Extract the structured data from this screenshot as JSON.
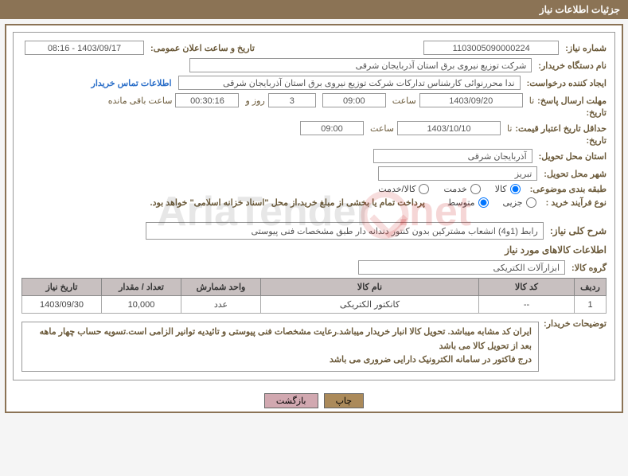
{
  "header": {
    "title": "جزئیات اطلاعات نیاز"
  },
  "form": {
    "need_number_label": "شماره نیاز:",
    "need_number": "1103005090000224",
    "announce_label": "تاریخ و ساعت اعلان عمومی:",
    "announce_value": "1403/09/17 - 08:16",
    "buyer_label": "نام دستگاه خریدار:",
    "buyer_value": "شرکت توزیع نیروی برق استان آذربایجان شرقی",
    "creator_label": "ایجاد کننده درخواست:",
    "creator_value": "ندا محررنوائی کارشناس تدارکات شرکت توزیع نیروی برق استان آذربایجان شرقی",
    "contact_link": "اطلاعات تماس خریدار",
    "deadline_send_label": "مهلت ارسال پاسخ:",
    "ta_label": "تا",
    "date_label": "تاریخ:",
    "deadline_date": "1403/09/20",
    "hour_label": "ساعت",
    "deadline_hour": "09:00",
    "days": "3",
    "day_and": "روز و",
    "countdown": "00:30:16",
    "remaining_label": "ساعت باقی مانده",
    "validity_label": "حداقل تاریخ اعتبار قیمت:",
    "validity_date": "1403/10/10",
    "validity_hour": "09:00",
    "province_label": "استان محل تحویل:",
    "province_value": "آذربایجان شرقی",
    "city_label": "شهر محل تحویل:",
    "city_value": "تبریز",
    "category_label": "طبقه بندی موضوعی:",
    "cat_goods": "کالا",
    "cat_service": "خدمت",
    "cat_goods_service": "کالا/خدمت",
    "process_label": "نوع فرآیند خرید :",
    "proc_partial": "جزیی",
    "proc_medium": "متوسط",
    "payment_note": "پرداخت تمام یا بخشی از مبلغ خرید،از محل \"اسناد خزانه اسلامی\" خواهد بود.",
    "overall_label": "شرح کلی نیاز:",
    "overall_value": "رابط (1و4) انشعاب مشترکین بدون کنتور دندانه دار طبق مشخصات فنی پیوستی",
    "goods_info_title": "اطلاعات کالاهای مورد نیاز",
    "group_label": "گروه کالا:",
    "group_value": "ابزارآلات الکتریکی"
  },
  "table": {
    "columns": [
      "ردیف",
      "کد کالا",
      "نام کالا",
      "واحد شمارش",
      "تعداد / مقدار",
      "تاریخ نیاز"
    ],
    "col_widths": [
      "40px",
      "120px",
      "auto",
      "100px",
      "100px",
      "100px"
    ],
    "header_bg": "#c8c0c0",
    "rows": [
      [
        "1",
        "--",
        "کانکتور الکتریکی",
        "عدد",
        "10,000",
        "1403/09/30"
      ]
    ]
  },
  "buyer_notes": {
    "label": "توضیحات خریدار:",
    "text": "ایران کد مشابه میباشد. تحویل کالا انبار خریدار میباشد.رعایت مشخصات فنی پیوستی و تائیدیه توانیر الزامی است.تسویه حساب چهار ماهه بعد از تحویل کالا می باشد\nدرج فاکتور در سامانه الکترونیک دارایی ضروری می باشد"
  },
  "buttons": {
    "print": "چاپ",
    "back": "بازگشت"
  },
  "watermark": {
    "text1": "AriaTender",
    "text2": ".net"
  }
}
